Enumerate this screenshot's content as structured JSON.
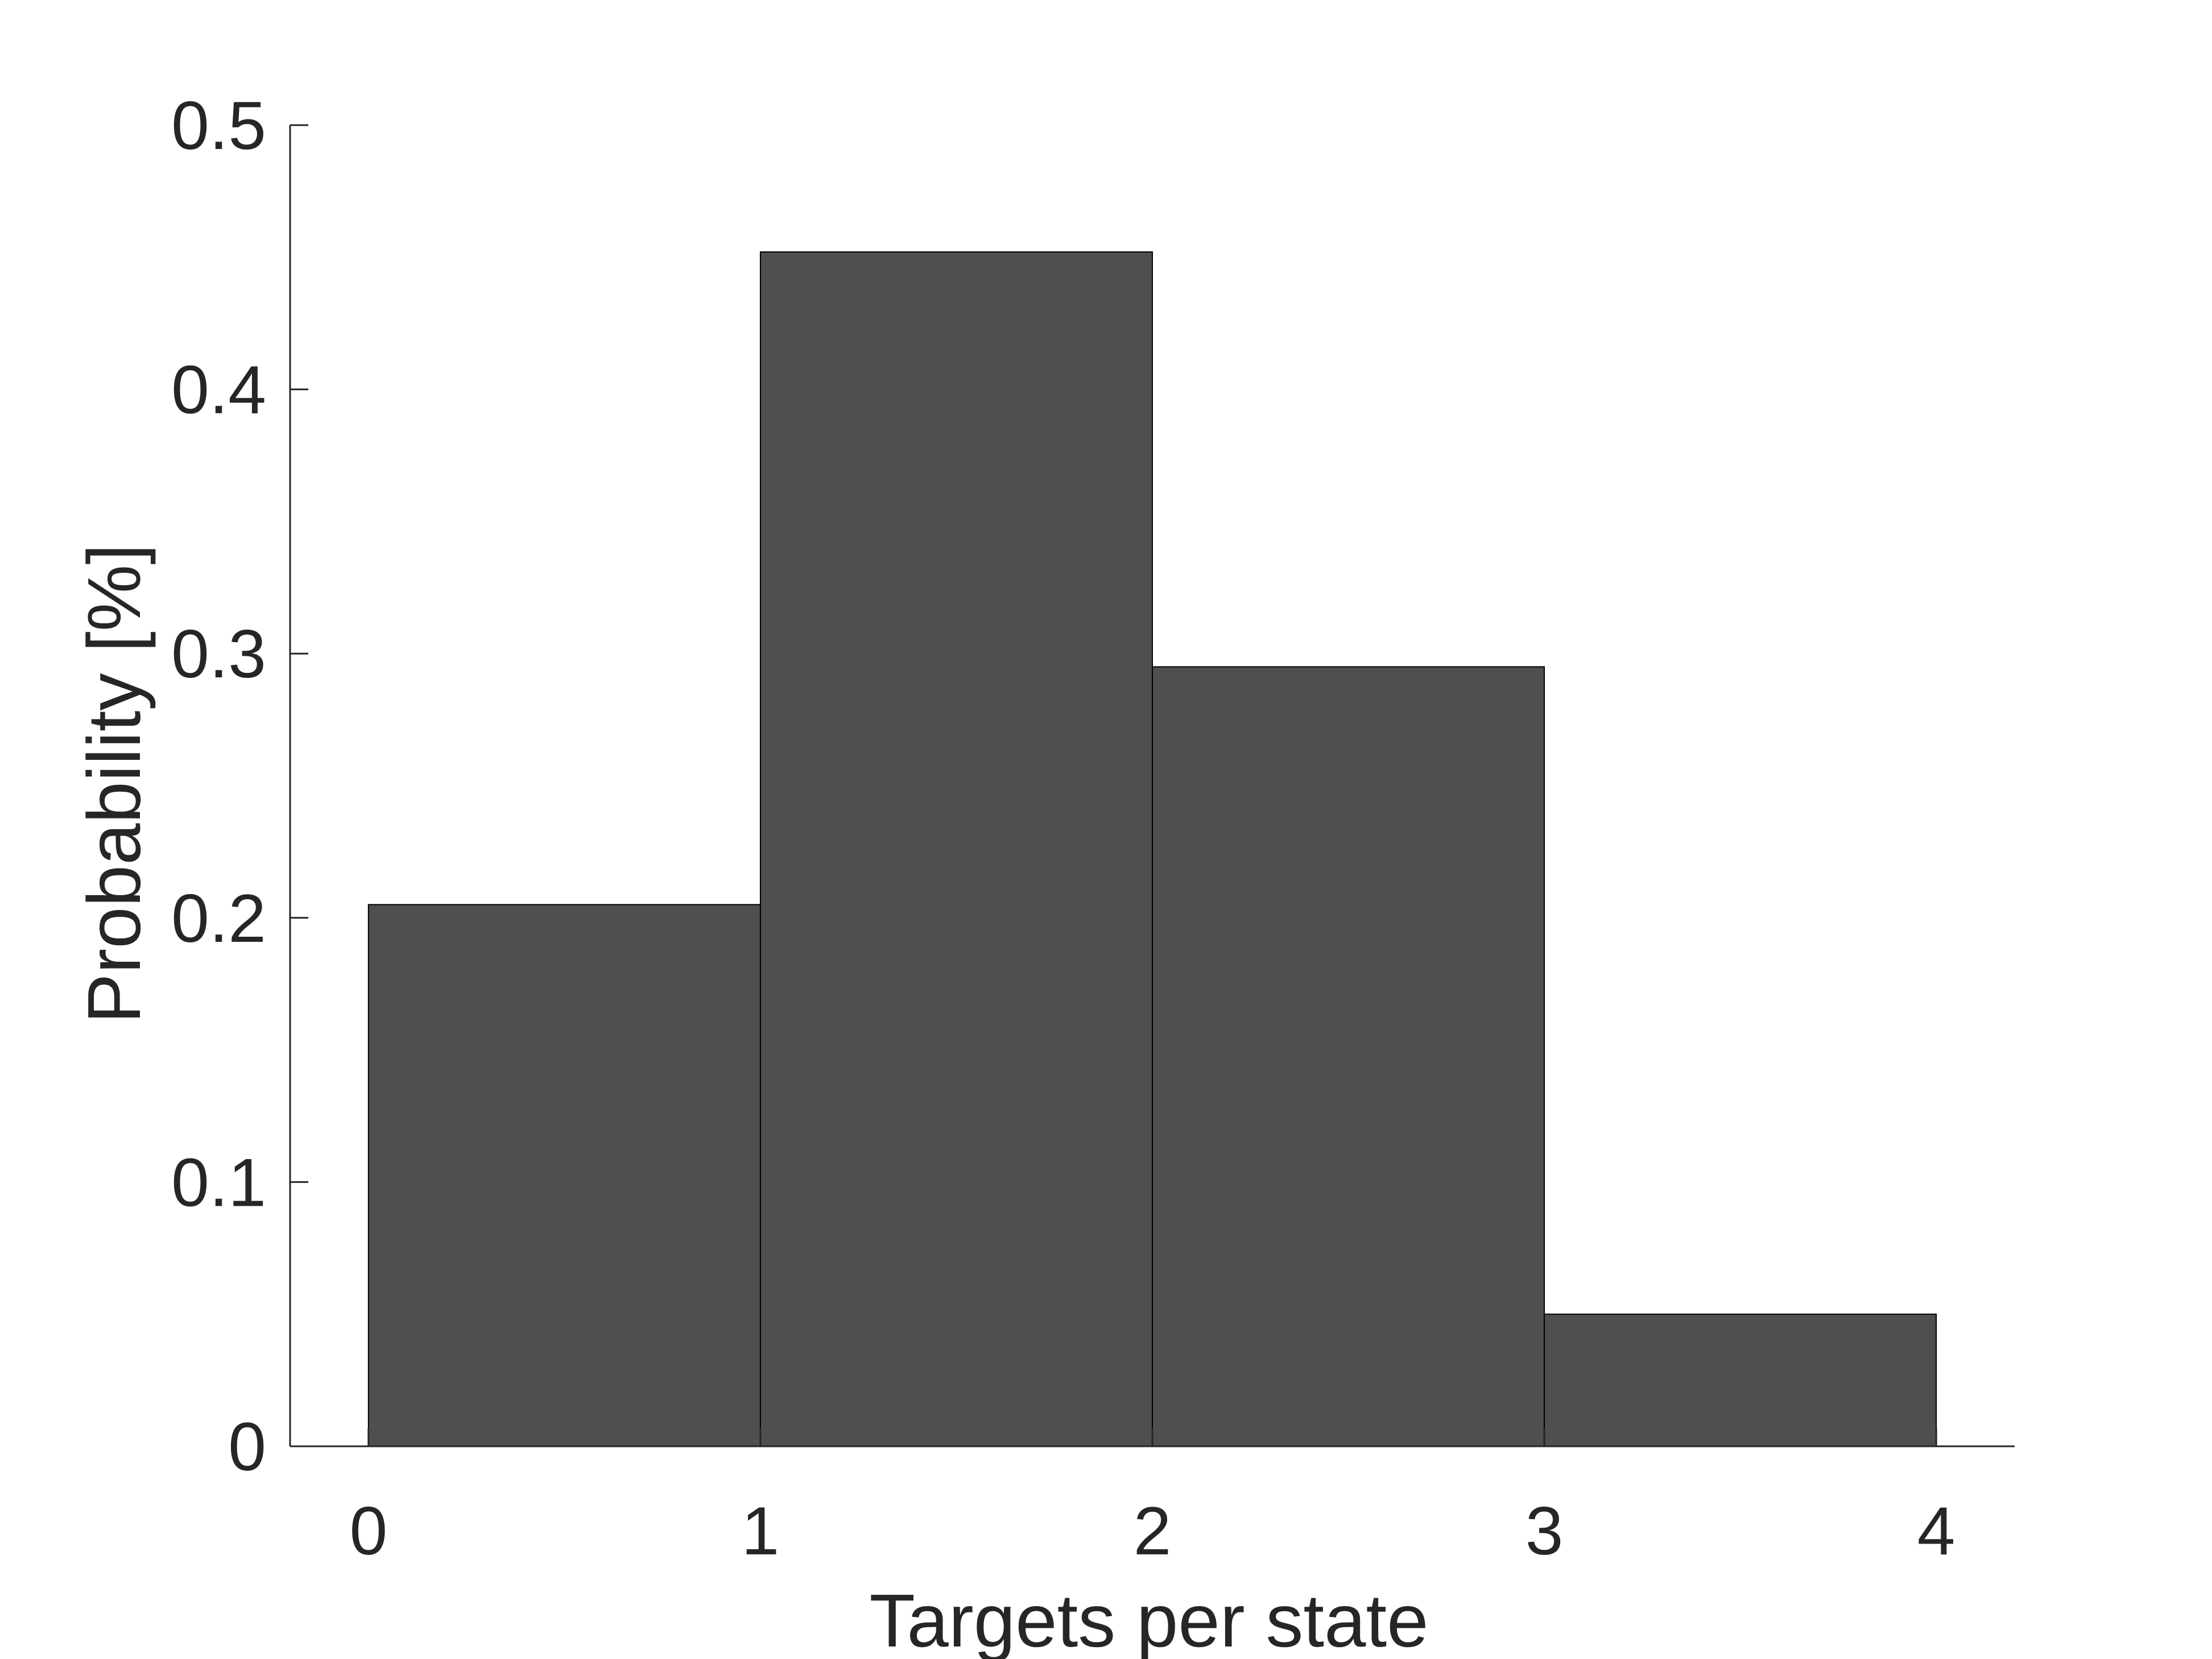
{
  "chart_data": {
    "type": "bar",
    "subtype": "histogram",
    "bin_edges": [
      0,
      1,
      2,
      3,
      4
    ],
    "values": [
      0.205,
      0.452,
      0.295,
      0.05
    ],
    "title": "",
    "xlabel": "Targets per state",
    "ylabel": "Probability [%]",
    "xlim": [
      -0.2,
      4.2
    ],
    "ylim": [
      0,
      0.5
    ],
    "xticks": [
      0,
      1,
      2,
      3,
      4
    ],
    "xtick_labels": [
      "0",
      "1",
      "2",
      "3",
      "4"
    ],
    "yticks": [
      0,
      0.1,
      0.2,
      0.3,
      0.4,
      0.5
    ],
    "ytick_labels": [
      "0",
      "0.1",
      "0.2",
      "0.3",
      "0.4",
      "0.5"
    ],
    "grid": false,
    "legend": "none",
    "colors": {
      "bar_fill": "#4f4f4f",
      "bar_edge": "#000000",
      "axis": "#262626",
      "text": "#262626",
      "background": "#ffffff"
    }
  }
}
